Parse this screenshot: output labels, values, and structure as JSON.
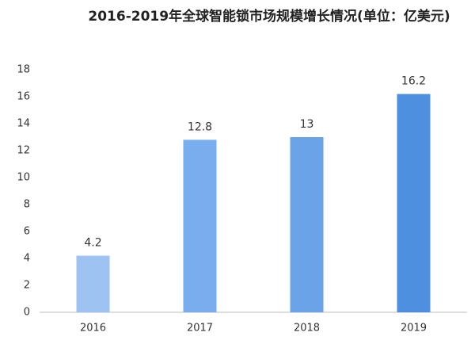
{
  "chart_data": {
    "type": "bar",
    "title": "2016-2019年全球智能锁市场规模增长情况(单位：亿美元)",
    "categories": [
      "2016",
      "2017",
      "2018",
      "2019"
    ],
    "values": [
      4.2,
      12.8,
      13,
      16.2
    ],
    "colors": [
      "#9dc3f2",
      "#78aeed",
      "#6aa3e8",
      "#4f8fe0"
    ],
    "ylim": [
      0,
      18
    ],
    "yticks": [
      0,
      2,
      4,
      6,
      8,
      10,
      12,
      14,
      16,
      18
    ],
    "grid": false
  }
}
